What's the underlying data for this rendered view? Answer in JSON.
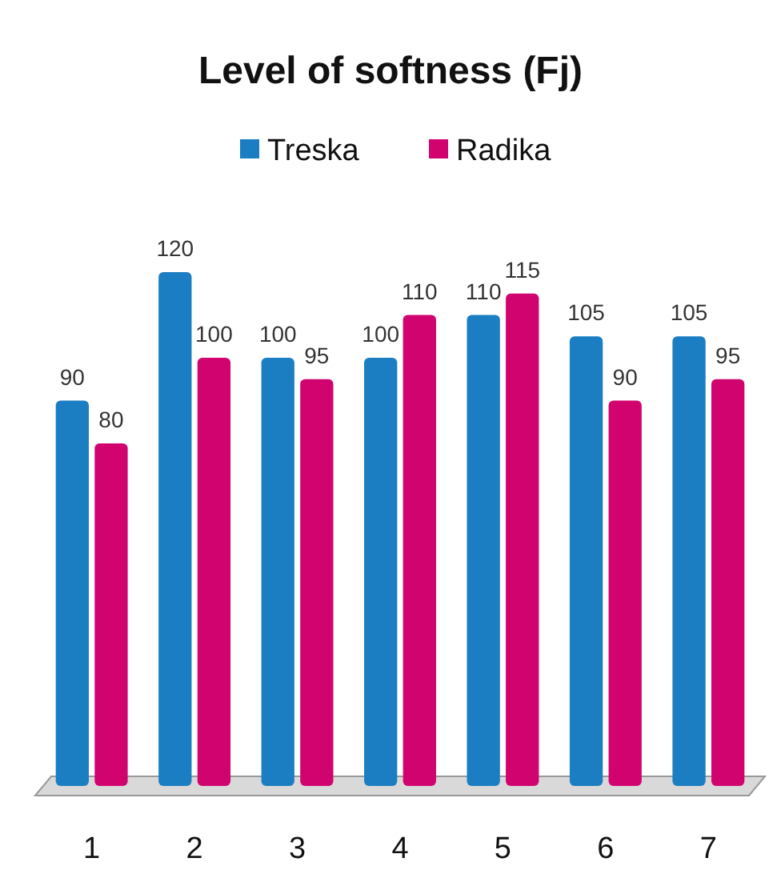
{
  "chart_data": {
    "type": "bar",
    "title": "Level of softness (Fj)",
    "categories": [
      "1",
      "2",
      "3",
      "4",
      "5",
      "6",
      "7"
    ],
    "series": [
      {
        "name": "Treska",
        "color": "#1b7ec2",
        "values": [
          90,
          120,
          100,
          100,
          110,
          105,
          105
        ]
      },
      {
        "name": "Radika",
        "color": "#d1046f",
        "values": [
          80,
          100,
          95,
          110,
          115,
          90,
          95
        ]
      }
    ],
    "data_labels": true,
    "legend": "top",
    "grid": false
  }
}
